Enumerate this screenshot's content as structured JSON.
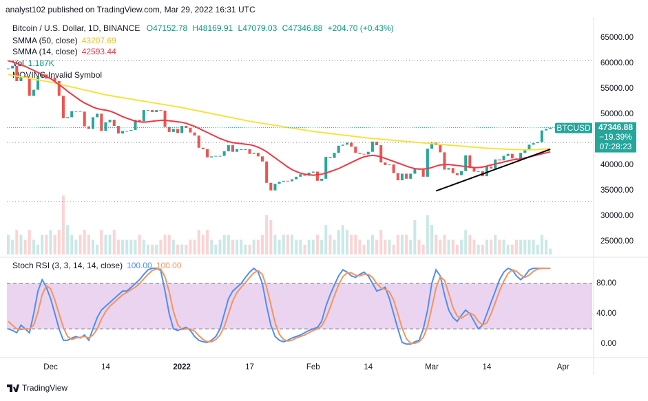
{
  "publisher": "analyst102 published on TradingView.com, Mar 29, 2022 16:31 UTC",
  "brand": "TradingView",
  "chart_data": [
    {
      "type": "candlestick",
      "title": "Bitcoin / U.S. Dollar, 1D, BINANCE",
      "ohlc_labels": [
        "O47152.78",
        "H48169.91",
        "L47079.03",
        "C47346.88",
        "+204.70 (+0.43%)"
      ],
      "up_color": "#26a69a",
      "down_color": "#ef5350",
      "close": [
        59000,
        59500,
        56500,
        57500,
        57200,
        53600,
        54800,
        57300,
        57800,
        57000,
        57200,
        56500,
        53600,
        49200,
        49400,
        50600,
        50600,
        50500,
        47600,
        47100,
        49400,
        50100,
        46700,
        48400,
        48900,
        47700,
        46200,
        46700,
        46700,
        46900,
        48900,
        48600,
        50800,
        50800,
        50400,
        50800,
        50700,
        47500,
        46500,
        47100,
        46300,
        47700,
        47300,
        46400,
        45800,
        43400,
        43100,
        41500,
        41700,
        41800,
        41800,
        42700,
        43900,
        42600,
        43100,
        43100,
        43100,
        42200,
        42400,
        41700,
        40700,
        36500,
        35000,
        36300,
        36700,
        36900,
        36800,
        37200,
        37700,
        38200,
        37900,
        38500,
        38700,
        36900,
        37300,
        41600,
        41400,
        42400,
        43800,
        44000,
        44400,
        43600,
        42400,
        42200,
        42100,
        42600,
        44600,
        43900,
        40500,
        40000,
        40100,
        38400,
        37000,
        38300,
        37300,
        38300,
        39200,
        39100,
        37700,
        43200,
        44400,
        43900,
        42500,
        39100,
        39400,
        38400,
        38000,
        38800,
        41900,
        39400,
        38700,
        38800,
        37800,
        39700,
        39300,
        41100,
        40900,
        41800,
        42200,
        41300,
        41000,
        42400,
        42900,
        44000,
        44300,
        44500,
        46800,
        47100,
        47346.88
      ],
      "volume_name": "Vol",
      "volume_label": "1.187K",
      "volume_lim": [
        0,
        14
      ],
      "volume": [
        4,
        3,
        5,
        4,
        3,
        5,
        3,
        2,
        4,
        4,
        5,
        4,
        5,
        12,
        6,
        4,
        3,
        4,
        5,
        4,
        3,
        2,
        5,
        4,
        4,
        5,
        3,
        3,
        3,
        3,
        3,
        4,
        3,
        2,
        2,
        2,
        3,
        4,
        4,
        3,
        2,
        2,
        2,
        3,
        3,
        5,
        4,
        5,
        3,
        2,
        3,
        4,
        4,
        3,
        3,
        3,
        2,
        2,
        3,
        3,
        4,
        8,
        7,
        4,
        3,
        4,
        4,
        4,
        3,
        3,
        2,
        3,
        3,
        4,
        3,
        6,
        4,
        3,
        5,
        6,
        5,
        4,
        4,
        3,
        2,
        3,
        4,
        3,
        5,
        3,
        3,
        2,
        4,
        4,
        4,
        3,
        7,
        3,
        2,
        8,
        6,
        4,
        3,
        4,
        3,
        3,
        2,
        3,
        5,
        4,
        3,
        2,
        2,
        3,
        3,
        4,
        3,
        3,
        2,
        2,
        3,
        3,
        3,
        3,
        3,
        2,
        4,
        3,
        1.187
      ],
      "series": [
        {
          "name": "SMMA (50, close)",
          "color": "#f7e23c",
          "values": [
            57800,
            57650,
            57500,
            57350,
            57200,
            57050,
            56900,
            56750,
            56600,
            56450,
            56300,
            56110,
            55920,
            55720,
            55530,
            55340,
            55150,
            54950,
            54760,
            54570,
            54380,
            54180,
            53990,
            53800,
            53660,
            53520,
            53380,
            53240,
            53100,
            52970,
            52830,
            52690,
            52550,
            52410,
            52270,
            52130,
            51990,
            51860,
            51720,
            51580,
            51440,
            51300,
            51130,
            50960,
            50790,
            50620,
            50460,
            50290,
            50120,
            49950,
            49780,
            49610,
            49440,
            49280,
            49110,
            48940,
            48770,
            48600,
            48470,
            48330,
            48200,
            48070,
            47930,
            47800,
            47670,
            47530,
            47400,
            47270,
            47130,
            47000,
            46870,
            46730,
            46600,
            46500,
            46400,
            46300,
            46200,
            46100,
            46000,
            45900,
            45800,
            45700,
            45600,
            45500,
            45400,
            45300,
            45230,
            45150,
            45080,
            45010,
            44930,
            44860,
            44790,
            44710,
            44640,
            44570,
            44490,
            44420,
            44350,
            44270,
            44200,
            44130,
            44060,
            43990,
            43920,
            43850,
            43780,
            43720,
            43650,
            43580,
            43510,
            43440,
            43370,
            43300,
            43260,
            43220,
            43180,
            43140,
            43100,
            43070,
            43040,
            43020,
            43000,
            43000,
            43020,
            43050,
            43100,
            43150,
            43207.69
          ]
        },
        {
          "name": "SMMA (14, close)",
          "color": "#f23645",
          "values": [
            60500,
            60300,
            60000,
            59700,
            59400,
            59000,
            58600,
            58200,
            57800,
            57400,
            57000,
            56400,
            55800,
            55200,
            54500,
            53900,
            53300,
            52700,
            52200,
            51800,
            51400,
            51100,
            50900,
            50800,
            50600,
            50300,
            49900,
            49500,
            49200,
            48900,
            48600,
            48500,
            48400,
            48500,
            48600,
            48700,
            48800,
            48800,
            48700,
            48600,
            48500,
            48400,
            48200,
            47900,
            47600,
            47200,
            46800,
            46400,
            46000,
            45600,
            45200,
            44900,
            44600,
            44400,
            44300,
            44200,
            44100,
            44000,
            43800,
            43500,
            43100,
            42600,
            42000,
            41400,
            40800,
            40200,
            39600,
            39100,
            38700,
            38400,
            38200,
            38100,
            38000,
            38100,
            38200,
            38400,
            38700,
            39000,
            39300,
            39700,
            40100,
            40500,
            40900,
            41300,
            41600,
            41800,
            41900,
            41800,
            41600,
            41300,
            41000,
            40700,
            40400,
            40100,
            39800,
            39500,
            39300,
            39200,
            39200,
            39300,
            39500,
            39800,
            40000,
            40100,
            40100,
            40000,
            39900,
            39800,
            39700,
            39600,
            39500,
            39500,
            39600,
            39800,
            40000,
            40200,
            40400,
            40600,
            40800,
            41000,
            41100,
            41200,
            41400,
            41600,
            41800,
            42000,
            42200,
            42400,
            42593.44
          ]
        }
      ],
      "indicator_note": "MOVING Invalid Symbol",
      "trendline": {
        "x": [
          101,
          128
        ],
        "y": [
          34900,
          43100
        ],
        "color": "#000000"
      },
      "dotted_levels": [
        60550,
        44450,
        32800
      ],
      "symbol": "BTCUSD",
      "price_label": "47346.88",
      "change_label": "−19.39%",
      "countdown": "07:28:23",
      "ylim": [
        22400,
        68400
      ],
      "yticks": [
        {
          "value": 65000,
          "label": "65000.00"
        },
        {
          "value": 60000,
          "label": "60000.00"
        },
        {
          "value": 55000,
          "label": "55000.00"
        },
        {
          "value": 50000,
          "label": "50000.00"
        },
        {
          "value": 40000,
          "label": "40000.00"
        },
        {
          "value": 35000,
          "label": "35000.00"
        },
        {
          "value": 30000,
          "label": "30000.00"
        },
        {
          "value": 25000,
          "label": "25000.00"
        }
      ],
      "xticks": [
        {
          "value": 10,
          "label": "Dec"
        },
        {
          "value": 23,
          "label": "14"
        },
        {
          "value": 41,
          "label": "2022"
        },
        {
          "value": 57,
          "label": "17"
        },
        {
          "value": 72,
          "label": "Feb"
        },
        {
          "value": 85,
          "label": "14"
        },
        {
          "value": 100,
          "label": "Mar"
        },
        {
          "value": 113,
          "label": "14"
        },
        {
          "value": 131,
          "label": "Apr"
        }
      ]
    },
    {
      "type": "line",
      "title": "Stoch RSI (3, 3, 14, 14, close)",
      "value_labels": [
        "100.00",
        "100.00"
      ],
      "band": [
        20,
        80
      ],
      "band_color": "rgba(156,39,176,0.2)",
      "series": [
        {
          "name": "K",
          "color": "#4c8ef5",
          "values": [
            20,
            18,
            15,
            25,
            20,
            15,
            40,
            70,
            85,
            75,
            60,
            40,
            20,
            5,
            5,
            8,
            10,
            8,
            12,
            5,
            20,
            35,
            45,
            50,
            55,
            60,
            65,
            70,
            70,
            75,
            80,
            85,
            92,
            98,
            100,
            100,
            97,
            70,
            40,
            20,
            18,
            20,
            22,
            18,
            10,
            5,
            3,
            2,
            5,
            10,
            20,
            40,
            60,
            70,
            75,
            80,
            88,
            95,
            100,
            95,
            80,
            50,
            25,
            10,
            5,
            3,
            5,
            8,
            10,
            12,
            15,
            18,
            20,
            22,
            30,
            50,
            65,
            78,
            90,
            98,
            95,
            90,
            88,
            92,
            95,
            90,
            80,
            70,
            72,
            75,
            60,
            40,
            20,
            2,
            0,
            0,
            3,
            5,
            20,
            45,
            80,
            98,
            90,
            65,
            45,
            35,
            30,
            38,
            45,
            40,
            30,
            20,
            25,
            40,
            55,
            70,
            85,
            95,
            100,
            98,
            90,
            85,
            90,
            98,
            100,
            100,
            100,
            100,
            100
          ]
        },
        {
          "name": "D",
          "color": "#f7935a",
          "values": [
            30,
            25,
            20,
            19,
            20,
            20,
            25,
            42,
            65,
            77,
            73,
            58,
            40,
            22,
            10,
            6,
            8,
            9,
            10,
            8,
            12,
            20,
            33,
            43,
            50,
            55,
            60,
            65,
            68,
            72,
            75,
            80,
            86,
            92,
            97,
            99,
            99,
            89,
            69,
            43,
            26,
            19,
            20,
            20,
            17,
            11,
            6,
            3,
            3,
            6,
            12,
            23,
            40,
            57,
            68,
            75,
            81,
            88,
            94,
            97,
            92,
            75,
            52,
            28,
            13,
            6,
            4,
            5,
            8,
            10,
            12,
            15,
            18,
            20,
            24,
            34,
            48,
            64,
            78,
            89,
            94,
            94,
            91,
            90,
            92,
            92,
            88,
            80,
            74,
            72,
            69,
            58,
            40,
            21,
            7,
            1,
            1,
            3,
            9,
            23,
            48,
            74,
            89,
            84,
            67,
            48,
            37,
            34,
            38,
            41,
            38,
            30,
            25,
            28,
            40,
            55,
            70,
            83,
            93,
            98,
            96,
            91,
            88,
            91,
            96,
            99,
            100,
            100,
            100
          ]
        }
      ],
      "ylim": [
        -18,
        111
      ],
      "yticks": [
        {
          "value": 80,
          "label": "80.00"
        },
        {
          "value": 40,
          "label": "40.00"
        },
        {
          "value": 0,
          "label": "0.00"
        }
      ]
    }
  ]
}
